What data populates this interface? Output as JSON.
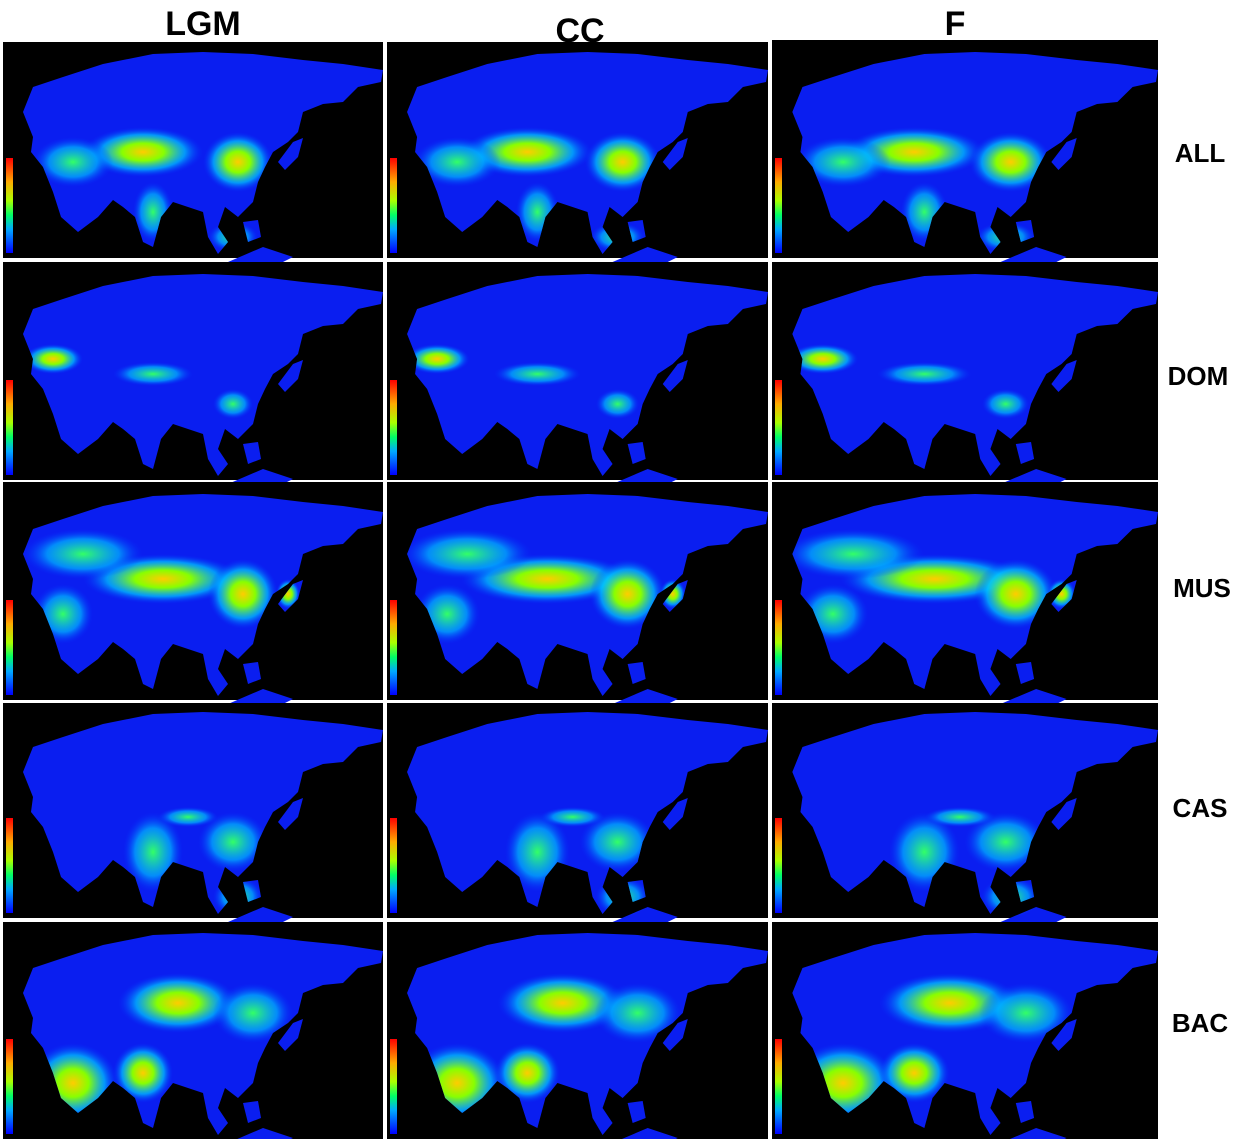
{
  "headers": {
    "columns": [
      "LGM",
      "CC",
      "F"
    ],
    "rows": [
      "ALL",
      "DOM",
      "MUS",
      "CAS",
      "BAC"
    ]
  }
}
